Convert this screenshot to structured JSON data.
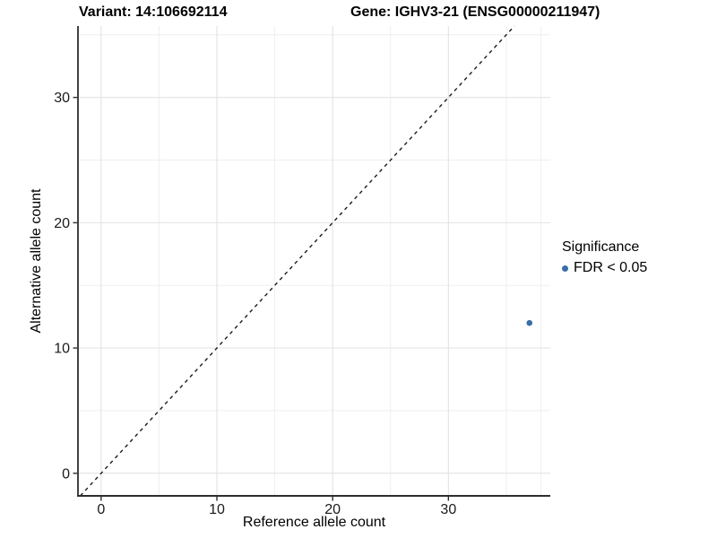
{
  "chart_data": {
    "type": "scatter",
    "title_left": "Variant: 14:106692114",
    "title_right": "Gene: IGHV3-21 (ENSG00000211947)",
    "xlabel": "Reference allele count",
    "ylabel": "Alternative allele count",
    "xlim": [
      -2.0,
      38.8
    ],
    "ylim": [
      -1.8,
      35.7
    ],
    "x_major_ticks": [
      0,
      10,
      20,
      30
    ],
    "y_major_ticks": [
      0,
      10,
      20,
      30
    ],
    "x_minor_gridlines": [
      5,
      15,
      25,
      35,
      38
    ],
    "y_minor_gridlines": [
      5,
      15,
      25,
      35
    ],
    "grid": true,
    "points": [
      {
        "x": 37,
        "y": 12,
        "series": "FDR < 0.05"
      }
    ],
    "identity_line": {
      "slope": 1,
      "intercept": 0,
      "style": "dashed"
    },
    "legend": {
      "title": "Significance",
      "position": "right",
      "items": [
        {
          "label": "FDR < 0.05",
          "color": "#3A6EA8"
        }
      ]
    },
    "colors": {
      "point": "#3A6EA8",
      "grid_major": "#e2e2e2",
      "grid_minor": "#efefef",
      "axis_line": "#2e2e2e",
      "axis_text": "#1a1a1a",
      "dashed_line": "#1a1a1a",
      "background": "#ffffff"
    }
  }
}
